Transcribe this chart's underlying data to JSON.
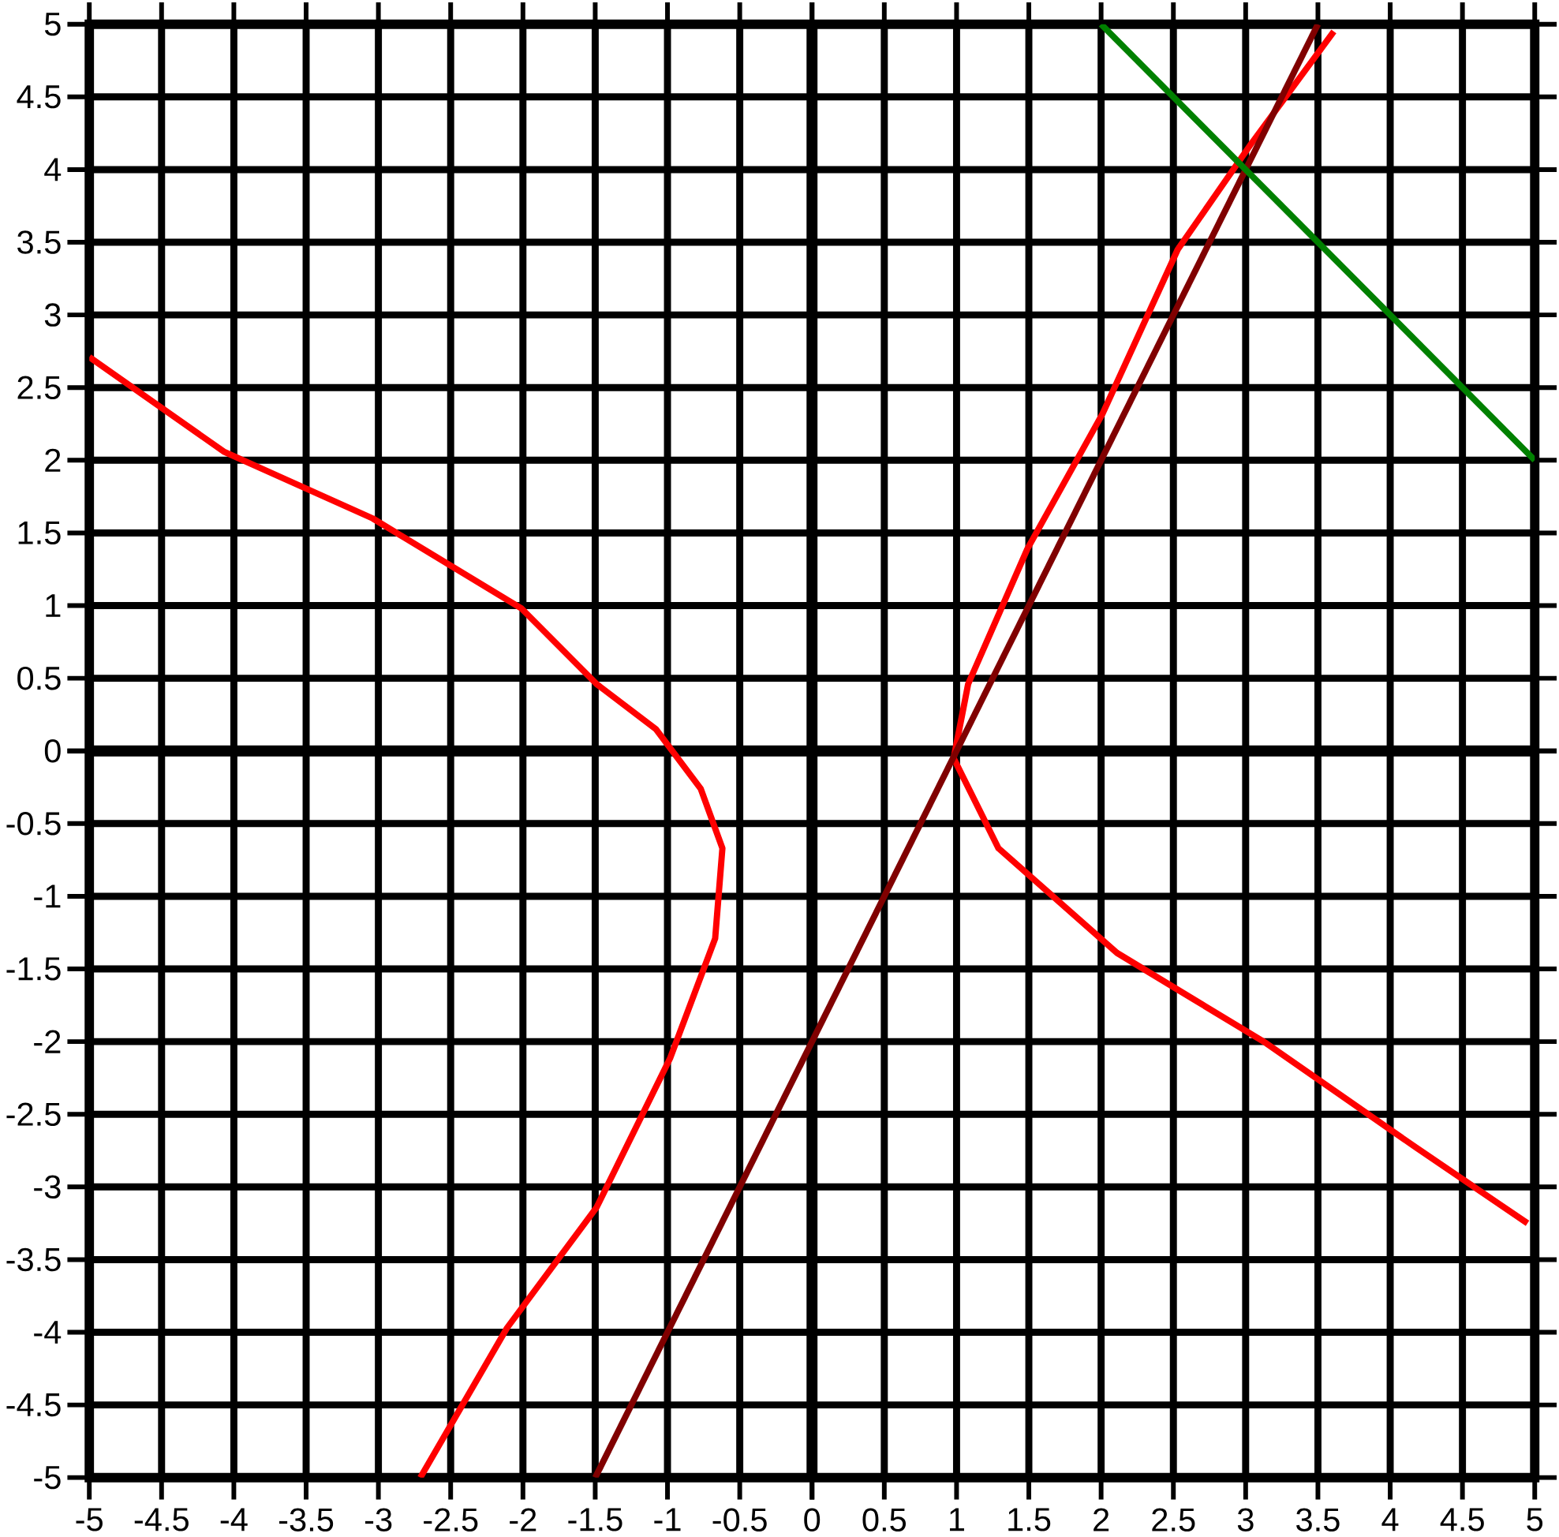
{
  "chart_data": {
    "type": "line",
    "xlim": [
      -5,
      5
    ],
    "ylim": [
      -5,
      5
    ],
    "xticks": [
      -5,
      -4.5,
      -4,
      -3.5,
      -3,
      -2.5,
      -2,
      -1.5,
      -1,
      -0.5,
      0,
      0.5,
      1,
      1.5,
      2,
      2.5,
      3,
      3.5,
      4,
      4.5,
      5
    ],
    "yticks": [
      -5,
      -4.5,
      -4,
      -3.5,
      -3,
      -2.5,
      -2,
      -1.5,
      -1,
      -0.5,
      0,
      0.5,
      1,
      1.5,
      2,
      2.5,
      3,
      3.5,
      4,
      4.5,
      5
    ],
    "grid": true,
    "marker": "none",
    "line_style": "solid",
    "series": [
      {
        "color": "#ff0000",
        "x": [
          -5,
          -4.07,
          -3.04,
          -2.01,
          -1.49,
          -1.08,
          -0.77,
          -0.62,
          -0.67,
          -0.98,
          -1.49,
          -2.11,
          -2.71
        ],
        "values": [
          2.71,
          2.06,
          1.6,
          0.98,
          0.46,
          0.15,
          -0.26,
          -0.67,
          -1.29,
          -2.11,
          -3.14,
          -3.97,
          -5
        ]
      },
      {
        "color": "#ff0000",
        "x": [
          3.61,
          3.04,
          2.53,
          2.01,
          1.49,
          1.08,
          0.98,
          1.29,
          2.11,
          3.14,
          4.18,
          4.95
        ],
        "values": [
          4.95,
          4.18,
          3.45,
          2.32,
          1.39,
          0.46,
          -0.05,
          -0.67,
          -1.39,
          -2.01,
          -2.73,
          -3.25
        ]
      },
      {
        "color": "#800000",
        "x": [
          -1.5,
          3.5
        ],
        "values": [
          -5,
          5
        ]
      },
      {
        "color": "#008000",
        "x": [
          2,
          5
        ],
        "values": [
          5,
          2
        ]
      }
    ]
  }
}
